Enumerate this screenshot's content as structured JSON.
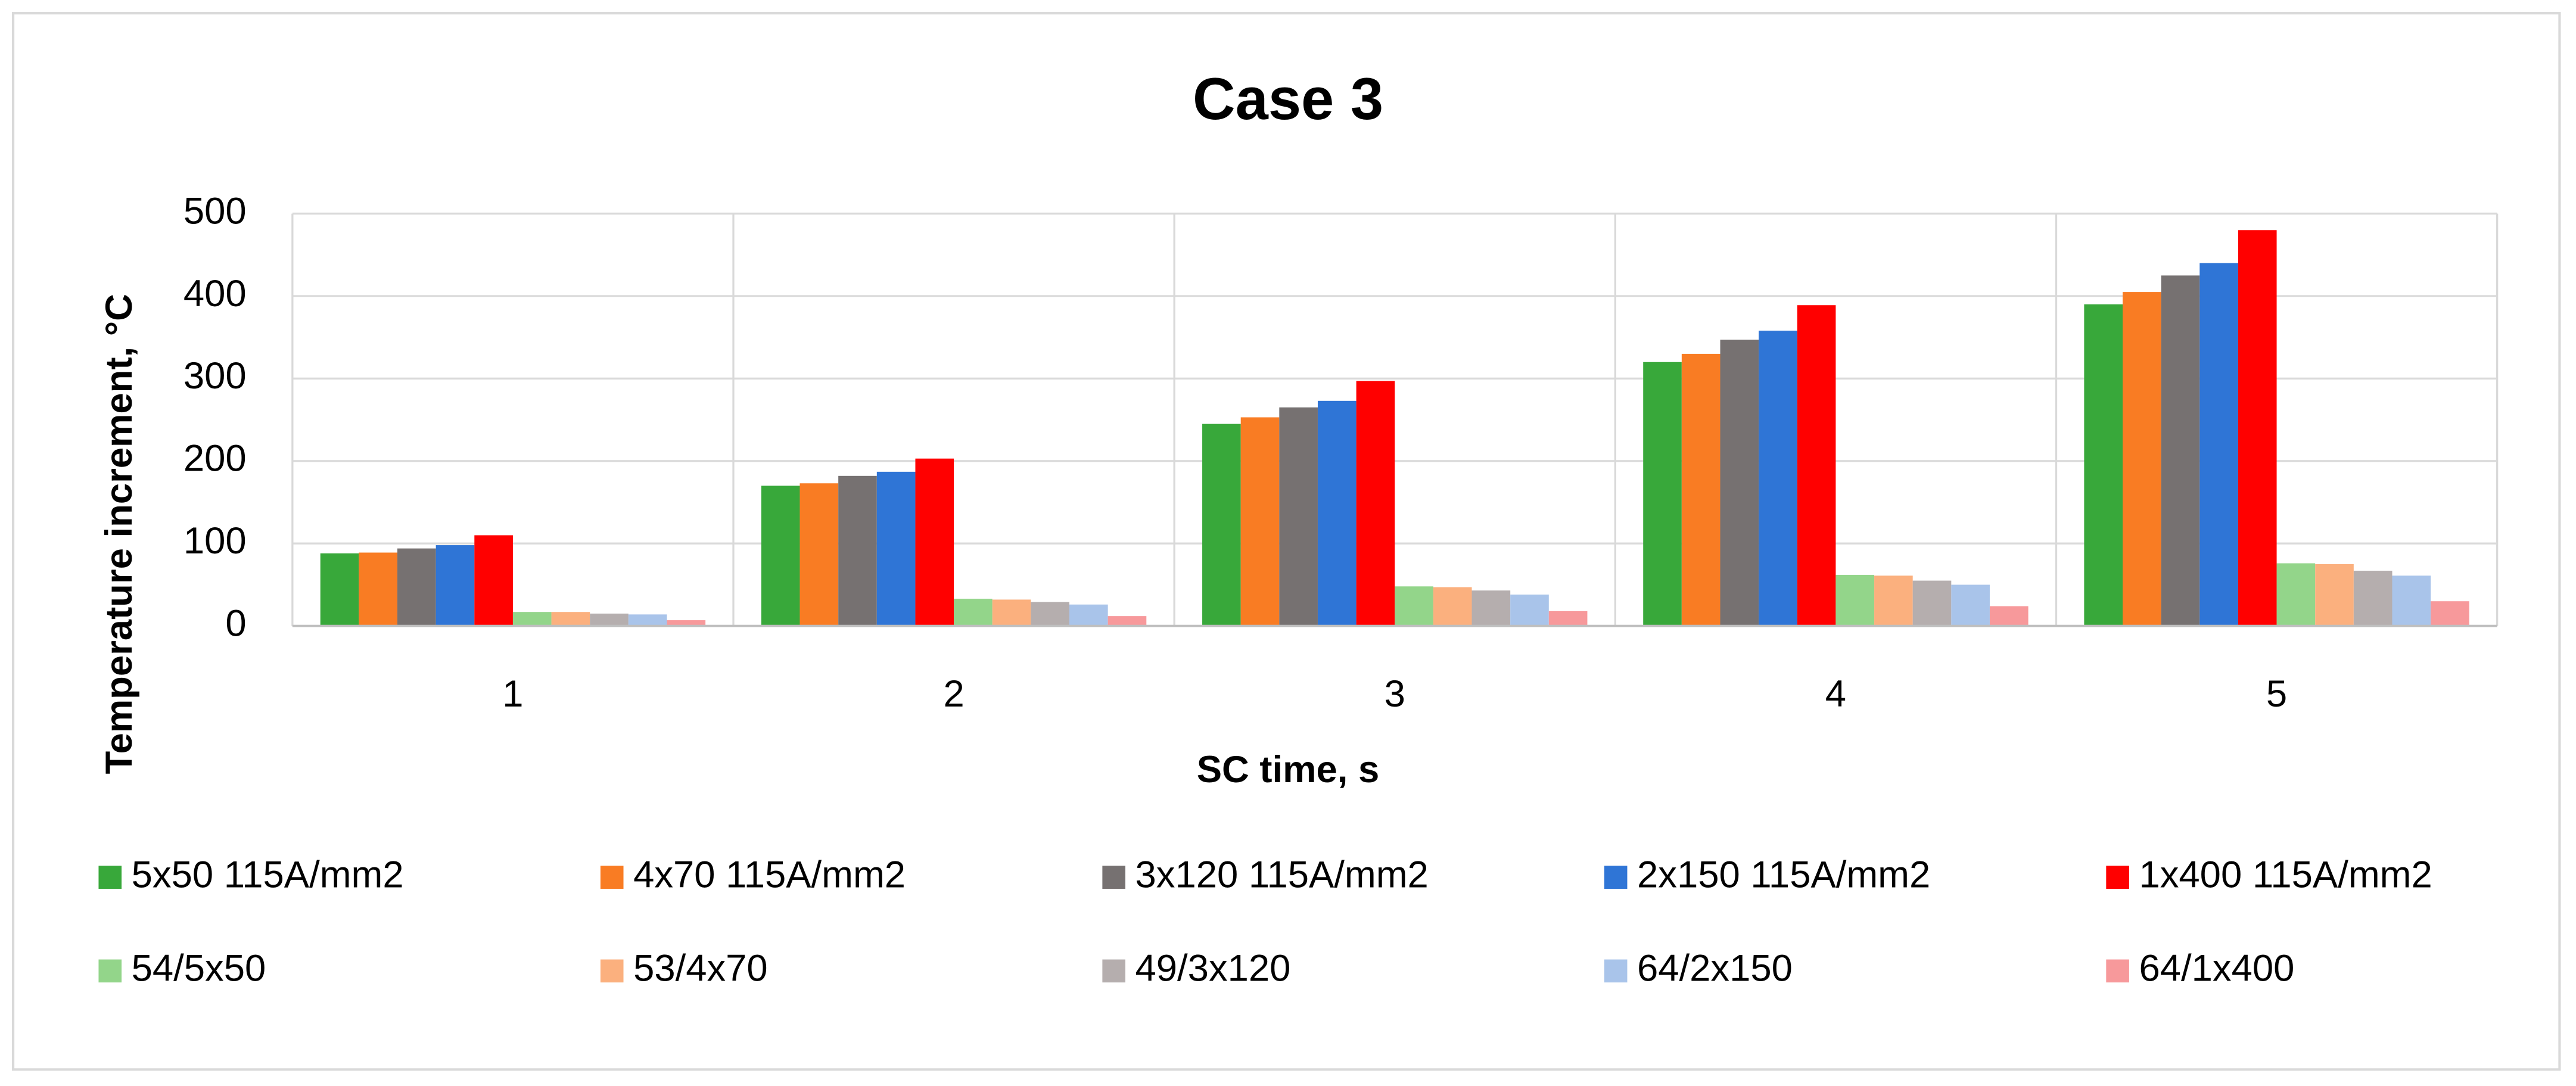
{
  "chart_data": {
    "type": "bar",
    "title": "Case 3",
    "x_label": "SC time, s",
    "y_label": "Temperature increment, °C",
    "categories": [
      "1",
      "2",
      "3",
      "4",
      "5"
    ],
    "series": [
      {
        "name": "5x50 115A/mm2",
        "color": "#38a83a",
        "values": [
          88,
          170,
          245,
          320,
          390
        ]
      },
      {
        "name": "4x70 115A/mm2",
        "color": "#f97c23",
        "values": [
          89,
          173,
          253,
          330,
          405
        ]
      },
      {
        "name": "3x120 115A/mm2",
        "color": "#767171",
        "values": [
          94,
          182,
          265,
          347,
          425
        ]
      },
      {
        "name": "2x150 115A/mm2",
        "color": "#2f75d6",
        "values": [
          98,
          187,
          273,
          358,
          440
        ]
      },
      {
        "name": "1x400 115A/mm2",
        "color": "#ff0000",
        "values": [
          110,
          203,
          297,
          389,
          480
        ]
      },
      {
        "name": "54/5x50",
        "color": "#93d58a",
        "values": [
          17,
          33,
          48,
          62,
          76
        ]
      },
      {
        "name": "53/4x70",
        "color": "#fbb07e",
        "values": [
          17,
          32,
          47,
          61,
          75
        ]
      },
      {
        "name": "49/3x120",
        "color": "#b5aeae",
        "values": [
          15,
          29,
          43,
          55,
          67
        ]
      },
      {
        "name": "64/2x150",
        "color": "#a9c4ea",
        "values": [
          14,
          26,
          38,
          50,
          61
        ]
      },
      {
        "name": "64/1x400",
        "color": "#f7999b",
        "values": [
          7,
          12,
          18,
          24,
          30
        ]
      }
    ],
    "ylim": [
      0,
      500
    ],
    "yticks": [
      0,
      100,
      200,
      300,
      400,
      500
    ],
    "grid": true,
    "legend": "bottom"
  }
}
